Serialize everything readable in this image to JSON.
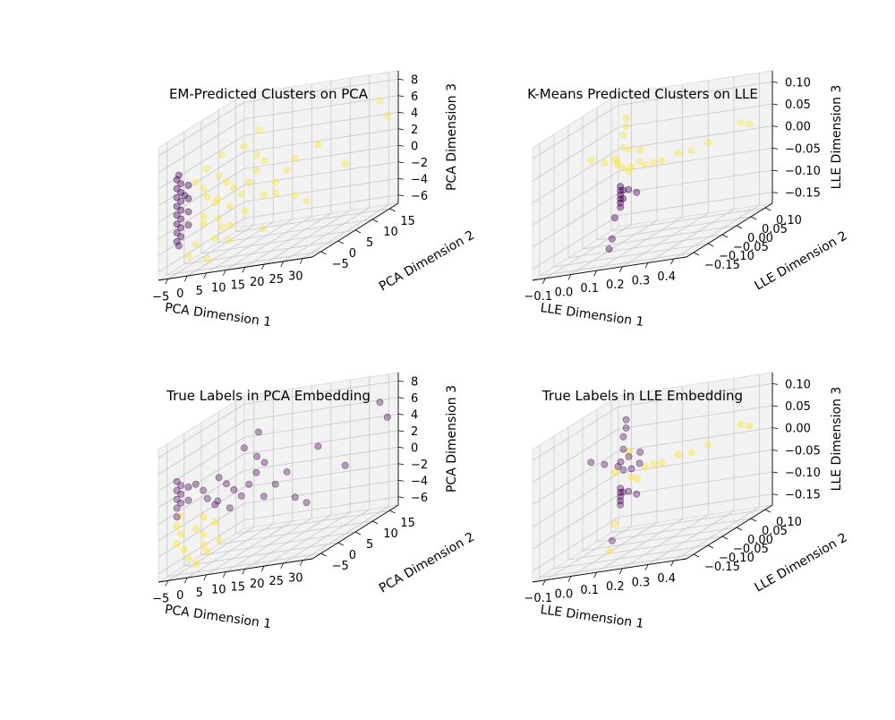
{
  "figure": {
    "background": "#ffffff",
    "pane_color": "#f2f2f2",
    "grid_color": "#c8c8c8",
    "cluster_colors": {
      "class_0": "#440154",
      "class_1": "#fde725"
    }
  },
  "chart_data": [
    {
      "type": "scatter",
      "projection": "3d",
      "title": "EM-Predicted Clusters on PCA",
      "xlabel": "PCA Dimension 1",
      "ylabel": "PCA Dimension 2",
      "zlabel": "PCA Dimension 3",
      "xticks": [
        "−5",
        "0",
        "5",
        "10",
        "15",
        "20",
        "25",
        "30"
      ],
      "yticks": [
        "−5",
        "0",
        "5",
        "10",
        "15"
      ],
      "zticks": [
        "−6",
        "−4",
        "−2",
        "0",
        "2",
        "4",
        "6",
        "8"
      ],
      "xlim": [
        -5,
        33
      ],
      "ylim": [
        -7,
        18
      ],
      "zlim": [
        -6.5,
        8.5
      ],
      "grid": true,
      "series": [
        {
          "color": "#440154",
          "alpha": 0.4,
          "points": [
            [
              -3,
              -4,
              4.0
            ],
            [
              -3,
              -4,
              3.0
            ],
            [
              -3,
              -4,
              2.0
            ],
            [
              -3,
              -4,
              1.0
            ],
            [
              -3,
              -4,
              0.0
            ],
            [
              -3,
              -4,
              -1.0
            ],
            [
              -3,
              -4,
              -2.0
            ],
            [
              -3,
              -4,
              -3.0
            ],
            [
              -2,
              -4,
              3.5
            ],
            [
              -2,
              -4,
              2.5
            ],
            [
              -2,
              -4,
              1.5
            ],
            [
              -2,
              -4,
              0.5
            ],
            [
              -2,
              -4,
              -0.5
            ],
            [
              -2,
              -4,
              -1.5
            ],
            [
              -2,
              -4,
              -2.5
            ],
            [
              -1,
              -3,
              3.0
            ],
            [
              -1,
              -3,
              1.5
            ],
            [
              -1,
              -3,
              0.0
            ],
            [
              -1,
              -3,
              -1.5
            ],
            [
              -2.5,
              -4,
              4.5
            ],
            [
              -1.5,
              -3.5,
              2.0
            ],
            [
              -2.5,
              -4,
              -3.5
            ]
          ]
        },
        {
          "color": "#fde725",
          "alpha": 0.35,
          "points": [
            [
              0,
              -2,
              3
            ],
            [
              1,
              -1,
              2
            ],
            [
              2,
              -1,
              1
            ],
            [
              3,
              0,
              0
            ],
            [
              2,
              -2,
              -1
            ],
            [
              1,
              -1,
              -2
            ],
            [
              4,
              1,
              -3
            ],
            [
              3,
              0,
              -4
            ],
            [
              0,
              -2,
              -4
            ],
            [
              5,
              1,
              2
            ],
            [
              6,
              2,
              1
            ],
            [
              4,
              0,
              3
            ],
            [
              2,
              2,
              0
            ],
            [
              3,
              1,
              -2
            ],
            [
              5,
              2,
              -1
            ],
            [
              6,
              1,
              -3
            ],
            [
              1,
              0,
              4
            ],
            [
              7,
              3,
              0
            ],
            [
              8,
              4,
              1
            ],
            [
              9,
              5,
              2
            ],
            [
              10,
              6,
              -1
            ],
            [
              8,
              3,
              -2
            ],
            [
              12,
              7,
              0
            ],
            [
              14,
              8,
              1
            ],
            [
              15,
              9,
              2
            ],
            [
              11,
              5,
              3
            ],
            [
              13,
              6,
              -1
            ],
            [
              16,
              8,
              -2
            ],
            [
              10,
              4,
              4
            ],
            [
              6,
              5,
              5
            ],
            [
              4,
              3,
              -5
            ],
            [
              2,
              -1,
              -6
            ],
            [
              -1,
              -3,
              -5
            ],
            [
              20,
              10,
              3
            ],
            [
              25,
              12,
              0
            ],
            [
              31,
              15,
              6
            ],
            [
              32,
              16,
              4
            ],
            [
              9,
              7,
              -5
            ],
            [
              7,
              8,
              6
            ],
            [
              3,
              2,
              5
            ],
            [
              18,
              9,
              -3
            ]
          ]
        }
      ]
    },
    {
      "type": "scatter",
      "projection": "3d",
      "title": "K-Means Predicted Clusters on LLE",
      "xlabel": "LLE Dimension 1",
      "ylabel": "LLE Dimension 2",
      "zlabel": "LLE Dimension 3",
      "xticks": [
        "−0.1",
        "0.0",
        "0.1",
        "0.2",
        "0.3",
        "0.4"
      ],
      "yticks": [
        "−0.15",
        "−0.10",
        "−0.05",
        "0.00",
        "0.05",
        "0.10"
      ],
      "zticks": [
        "−0.15",
        "−0.10",
        "−0.05",
        "0.00",
        "0.05",
        "0.10"
      ],
      "xlim": [
        -0.13,
        0.44
      ],
      "ylim": [
        -0.17,
        0.12
      ],
      "zlim": [
        -0.18,
        0.14
      ],
      "grid": true,
      "series": [
        {
          "color": "#fde725",
          "alpha": 0.35,
          "points": [
            [
              -0.1,
              0,
              0.03
            ],
            [
              -0.05,
              0,
              0.02
            ],
            [
              0.0,
              0,
              0.01
            ],
            [
              0.02,
              0,
              0.0
            ],
            [
              0.05,
              0,
              0.0
            ],
            [
              0.08,
              0,
              0.01
            ],
            [
              0.1,
              0,
              0.0
            ],
            [
              0.12,
              0.01,
              0.0
            ],
            [
              0.15,
              0.01,
              0.0
            ],
            [
              0.2,
              0.02,
              0.01
            ],
            [
              0.25,
              0.02,
              0.01
            ],
            [
              0.3,
              0.03,
              0.02
            ],
            [
              0.02,
              0,
              0.05
            ],
            [
              0.02,
              0,
              0.08
            ],
            [
              0.03,
              0.01,
              0.04
            ],
            [
              0.04,
              0.0,
              -0.01
            ],
            [
              0.01,
              -0.01,
              0.02
            ],
            [
              0.06,
              0.02,
              0.03
            ],
            [
              0.03,
              0,
              0.12
            ],
            [
              0.03,
              0,
              0.1
            ],
            [
              0.4,
              0.05,
              0.05
            ],
            [
              0.42,
              0.06,
              0.04
            ],
            [
              0.0,
              -0.01,
              0.03
            ]
          ]
        },
        {
          "color": "#440154",
          "alpha": 0.4,
          "points": [
            [
              0.02,
              -0.01,
              -0.04
            ],
            [
              0.02,
              -0.01,
              -0.05
            ],
            [
              0.02,
              -0.01,
              -0.06
            ],
            [
              0.02,
              -0.01,
              -0.07
            ],
            [
              0.02,
              -0.01,
              -0.08
            ],
            [
              0.02,
              -0.01,
              -0.09
            ],
            [
              0.03,
              -0.01,
              -0.05
            ],
            [
              0.03,
              -0.01,
              -0.07
            ],
            [
              0.05,
              -0.01,
              -0.05
            ],
            [
              0.08,
              -0.01,
              -0.06
            ],
            [
              0.01,
              -0.02,
              -0.11
            ],
            [
              0.0,
              -0.02,
              -0.16
            ],
            [
              0.0,
              -0.03,
              -0.18
            ]
          ]
        }
      ]
    },
    {
      "type": "scatter",
      "projection": "3d",
      "title": "True Labels in PCA Embedding",
      "xlabel": "PCA Dimension 1",
      "ylabel": "PCA Dimension 2",
      "zlabel": "PCA Dimension 3",
      "xticks": [
        "−5",
        "0",
        "5",
        "10",
        "15",
        "20",
        "25",
        "30"
      ],
      "yticks": [
        "−5",
        "0",
        "5",
        "10",
        "15"
      ],
      "zticks": [
        "−6",
        "−4",
        "−2",
        "0",
        "2",
        "4",
        "6",
        "8"
      ],
      "xlim": [
        -5,
        33
      ],
      "ylim": [
        -7,
        18
      ],
      "zlim": [
        -6.5,
        8.5
      ],
      "grid": true,
      "series": [
        {
          "color": "#fde725",
          "alpha": 0.4,
          "points": [
            [
              -3,
              -4,
              -1
            ],
            [
              -2,
              -4,
              -2
            ],
            [
              -3,
              -4,
              -3
            ],
            [
              -2,
              -3,
              -4
            ],
            [
              -1,
              -3,
              -5
            ],
            [
              0,
              -2,
              -2
            ],
            [
              1,
              -1,
              -3
            ],
            [
              2,
              -2,
              -4
            ],
            [
              0,
              -2,
              -6
            ],
            [
              3,
              0,
              -2
            ],
            [
              -2,
              -4,
              0
            ],
            [
              1,
              -1,
              -1
            ],
            [
              4,
              0,
              -4
            ],
            [
              2,
              -1,
              -5
            ]
          ]
        },
        {
          "color": "#440154",
          "alpha": 0.35,
          "points": [
            [
              -3,
              -4,
              4.0
            ],
            [
              -3,
              -4,
              3.0
            ],
            [
              -3,
              -4,
              2.0
            ],
            [
              -3,
              -4,
              1.0
            ],
            [
              -3,
              -4,
              0.0
            ],
            [
              -2,
              -4,
              3.5
            ],
            [
              -2,
              -4,
              2.5
            ],
            [
              -2,
              -4,
              1.5
            ],
            [
              -1,
              -3,
              3.0
            ],
            [
              -1,
              -3,
              1.5
            ],
            [
              0,
              -2,
              3
            ],
            [
              1,
              -1,
              2
            ],
            [
              2,
              -1,
              1
            ],
            [
              3,
              0,
              0
            ],
            [
              5,
              1,
              2
            ],
            [
              6,
              2,
              1
            ],
            [
              4,
              0,
              3
            ],
            [
              7,
              3,
              0
            ],
            [
              8,
              4,
              1
            ],
            [
              9,
              5,
              2
            ],
            [
              10,
              6,
              -1
            ],
            [
              12,
              7,
              0
            ],
            [
              14,
              8,
              1
            ],
            [
              11,
              5,
              3
            ],
            [
              16,
              8,
              -2
            ],
            [
              10,
              4,
              4
            ],
            [
              6,
              5,
              5
            ],
            [
              20,
              10,
              3
            ],
            [
              25,
              12,
              0
            ],
            [
              31,
              15,
              6
            ],
            [
              32,
              16,
              4
            ],
            [
              7,
              8,
              6
            ],
            [
              18,
              9,
              -3
            ],
            [
              5,
              2,
              -1
            ],
            [
              2,
              2,
              0
            ]
          ]
        }
      ]
    },
    {
      "type": "scatter",
      "projection": "3d",
      "title": "True Labels in LLE Embedding",
      "xlabel": "LLE Dimension 1",
      "ylabel": "LLE Dimension 2",
      "zlabel": "LLE Dimension 3",
      "xticks": [
        "−0.1",
        "0.0",
        "0.1",
        "0.2",
        "0.3",
        "0.4"
      ],
      "yticks": [
        "−0.15",
        "−0.10",
        "−0.05",
        "0.00",
        "0.05",
        "0.10"
      ],
      "zticks": [
        "−0.15",
        "−0.10",
        "−0.05",
        "0.00",
        "0.05",
        "0.10"
      ],
      "xlim": [
        -0.13,
        0.44
      ],
      "ylim": [
        -0.17,
        0.12
      ],
      "zlim": [
        -0.18,
        0.14
      ],
      "grid": true,
      "series": [
        {
          "color": "#fde725",
          "alpha": 0.4,
          "points": [
            [
              0.1,
              0,
              0.0
            ],
            [
              0.15,
              0.01,
              0.0
            ],
            [
              0.2,
              0.02,
              0.01
            ],
            [
              0.25,
              0.02,
              0.01
            ],
            [
              0.3,
              0.03,
              0.02
            ],
            [
              0.12,
              0.01,
              0.0
            ],
            [
              0.03,
              0.01,
              0.04
            ],
            [
              0.0,
              -0.01,
              0.0
            ],
            [
              0.4,
              0.05,
              0.05
            ],
            [
              0.42,
              0.06,
              0.04
            ],
            [
              0.05,
              0,
              -0.02
            ],
            [
              0.01,
              -0.02,
              -0.12
            ],
            [
              0.0,
              -0.03,
              -0.18
            ],
            [
              0.06,
              0.01,
              -0.03
            ]
          ]
        },
        {
          "color": "#440154",
          "alpha": 0.35,
          "points": [
            [
              -0.1,
              0,
              0.03
            ],
            [
              -0.05,
              0,
              0.02
            ],
            [
              0.0,
              0,
              0.01
            ],
            [
              0.02,
              0,
              0.0
            ],
            [
              0.05,
              0,
              0.0
            ],
            [
              0.08,
              0,
              0.01
            ],
            [
              0.02,
              0,
              0.05
            ],
            [
              0.02,
              0,
              0.08
            ],
            [
              0.03,
              0,
              0.12
            ],
            [
              0.03,
              0,
              0.1
            ],
            [
              0.04,
              0,
              0.03
            ],
            [
              0.02,
              -0.01,
              -0.04
            ],
            [
              0.02,
              -0.01,
              -0.05
            ],
            [
              0.02,
              -0.01,
              -0.06
            ],
            [
              0.02,
              -0.01,
              -0.07
            ],
            [
              0.02,
              -0.01,
              -0.08
            ],
            [
              0.03,
              -0.01,
              -0.05
            ],
            [
              0.05,
              -0.01,
              -0.05
            ],
            [
              0.08,
              -0.01,
              -0.06
            ],
            [
              0.0,
              -0.02,
              -0.16
            ],
            [
              0.06,
              0.02,
              0.03
            ],
            [
              0.01,
              0.0,
              0.02
            ]
          ]
        }
      ]
    }
  ]
}
